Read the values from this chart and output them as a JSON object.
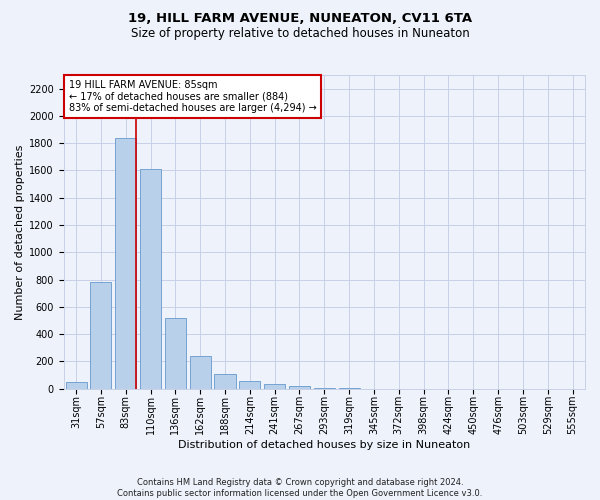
{
  "title": "19, HILL FARM AVENUE, NUNEATON, CV11 6TA",
  "subtitle": "Size of property relative to detached houses in Nuneaton",
  "xlabel": "Distribution of detached houses by size in Nuneaton",
  "ylabel": "Number of detached properties",
  "categories": [
    "31sqm",
    "57sqm",
    "83sqm",
    "110sqm",
    "136sqm",
    "162sqm",
    "188sqm",
    "214sqm",
    "241sqm",
    "267sqm",
    "293sqm",
    "319sqm",
    "345sqm",
    "372sqm",
    "398sqm",
    "424sqm",
    "450sqm",
    "476sqm",
    "503sqm",
    "529sqm",
    "555sqm"
  ],
  "values": [
    50,
    780,
    1840,
    1610,
    520,
    240,
    105,
    55,
    35,
    20,
    5,
    2,
    1,
    0,
    0,
    0,
    0,
    0,
    0,
    0,
    0
  ],
  "bar_color": "#b8d0ea",
  "bar_edge_color": "#6699cc",
  "annotation_text": "19 HILL FARM AVENUE: 85sqm\n← 17% of detached houses are smaller (884)\n83% of semi-detached houses are larger (4,294) →",
  "annotation_box_color": "#ffffff",
  "annotation_box_edge_color": "#cc0000",
  "ylim": [
    0,
    2300
  ],
  "yticks": [
    0,
    200,
    400,
    600,
    800,
    1000,
    1200,
    1400,
    1600,
    1800,
    2000,
    2200
  ],
  "title_fontsize": 9.5,
  "subtitle_fontsize": 8.5,
  "xlabel_fontsize": 8,
  "ylabel_fontsize": 8,
  "tick_fontsize": 7,
  "annotation_fontsize": 7,
  "footer_text": "Contains HM Land Registry data © Crown copyright and database right 2024.\nContains public sector information licensed under the Open Government Licence v3.0.",
  "footer_fontsize": 6,
  "background_color": "#eef2fb",
  "plot_background_color": "#eef2fb",
  "grid_color": "#c8d0e8"
}
